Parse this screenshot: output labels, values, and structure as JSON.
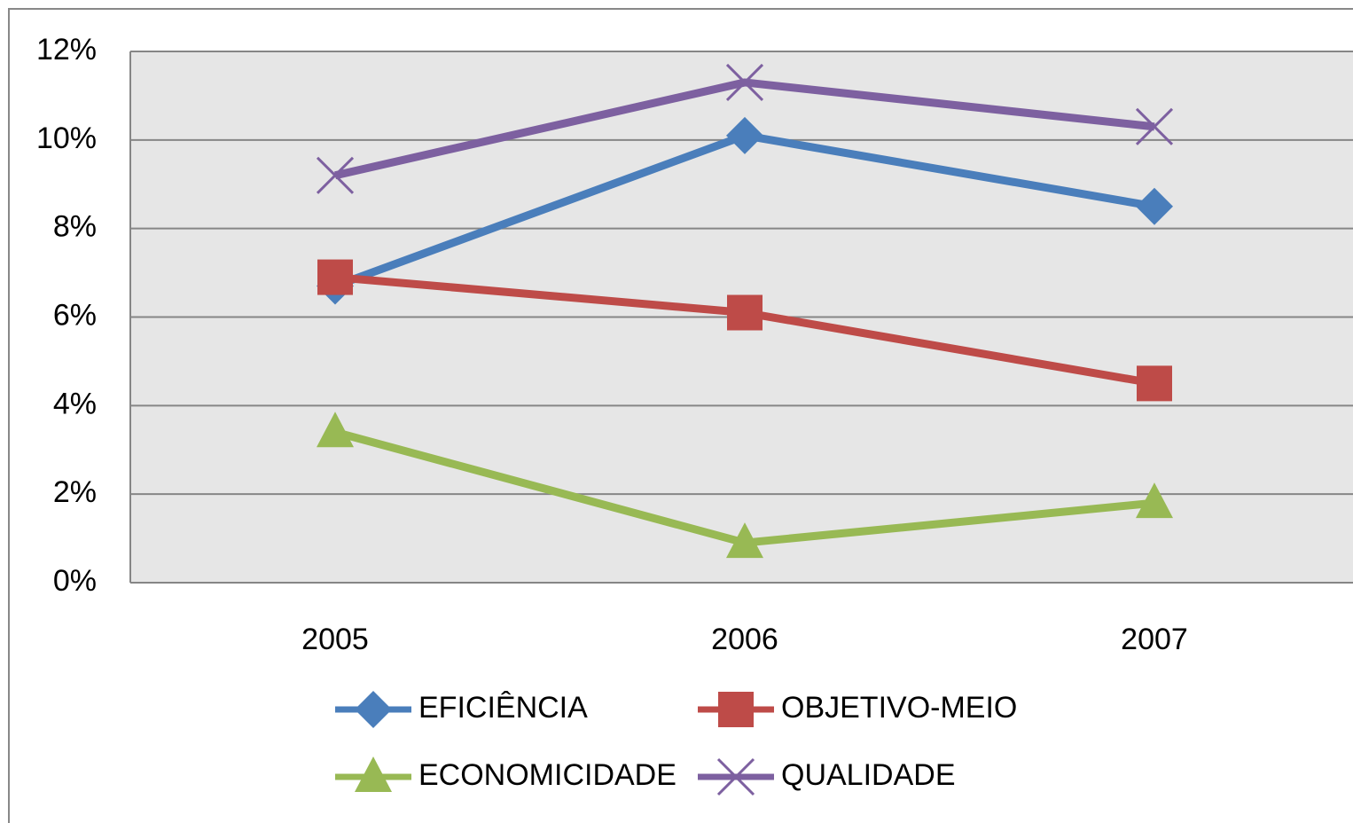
{
  "chart_data": {
    "type": "line",
    "categories": [
      "2005",
      "2006",
      "2007"
    ],
    "series": [
      {
        "name": "EFICIÊNCIA",
        "color": "#4a7ebb",
        "marker": "diamond",
        "values": [
          6.7,
          10.1,
          8.5
        ]
      },
      {
        "name": "OBJETIVO-MEIO",
        "color": "#be4b48",
        "marker": "square",
        "values": [
          6.9,
          6.1,
          4.5
        ]
      },
      {
        "name": "ECONOMICIDADE",
        "color": "#98b954",
        "marker": "triangle",
        "values": [
          3.4,
          0.9,
          1.8
        ]
      },
      {
        "name": "QUALIDADE",
        "color": "#7d60a0",
        "marker": "x",
        "values": [
          9.2,
          11.3,
          10.3
        ]
      }
    ],
    "ylim": [
      0,
      12
    ],
    "yticks": [
      {
        "value": 0,
        "label": "0%"
      },
      {
        "value": 2,
        "label": "2%"
      },
      {
        "value": 4,
        "label": "4%"
      },
      {
        "value": 6,
        "label": "6%"
      },
      {
        "value": 8,
        "label": "8%"
      },
      {
        "value": 10,
        "label": "10%"
      },
      {
        "value": 12,
        "label": "12%"
      }
    ],
    "grid": true,
    "legend": "bottom"
  }
}
